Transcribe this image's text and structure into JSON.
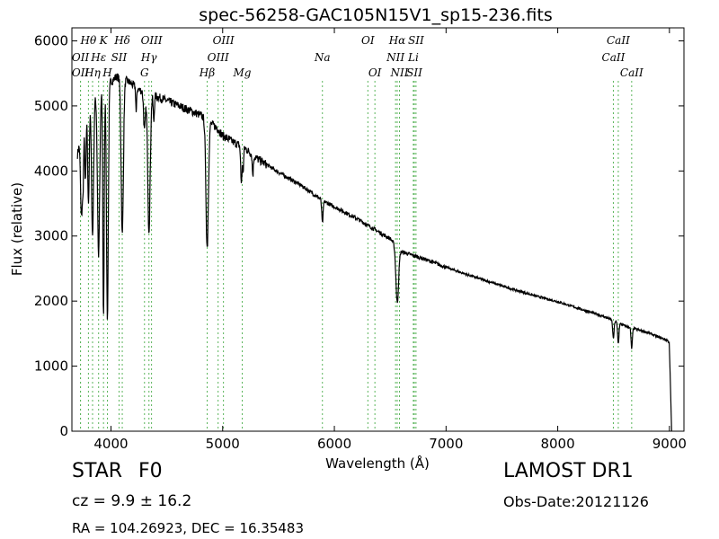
{
  "chart_data": {
    "type": "line",
    "title": "spec-56258-GAC105N15V1_sp15-236.fits",
    "xlabel": "Wavelength (Å)",
    "ylabel": "Flux (relative)",
    "xlim": [
      3650,
      9130
    ],
    "ylim": [
      0,
      6200
    ],
    "xticks": [
      4000,
      5000,
      6000,
      7000,
      8000,
      9000
    ],
    "yticks": [
      0,
      1000,
      2000,
      3000,
      4000,
      5000,
      6000
    ],
    "grid": false,
    "line_color": "#000000",
    "marker_color": "#5bb55b",
    "continuum": [
      [
        3700,
        4250
      ],
      [
        3760,
        4900
      ],
      [
        3850,
        5150
      ],
      [
        3950,
        5300
      ],
      [
        4050,
        5450
      ],
      [
        4150,
        5380
      ],
      [
        4250,
        5250
      ],
      [
        4400,
        5150
      ],
      [
        4500,
        5080
      ],
      [
        4650,
        4970
      ],
      [
        4800,
        4860
      ],
      [
        4950,
        4660
      ],
      [
        5000,
        4540
      ],
      [
        5100,
        4440
      ],
      [
        5200,
        4350
      ],
      [
        5300,
        4200
      ],
      [
        5500,
        3980
      ],
      [
        5700,
        3780
      ],
      [
        5900,
        3540
      ],
      [
        6000,
        3450
      ],
      [
        6200,
        3270
      ],
      [
        6400,
        3060
      ],
      [
        6500,
        2960
      ],
      [
        6600,
        2760
      ],
      [
        6800,
        2650
      ],
      [
        7000,
        2520
      ],
      [
        7200,
        2400
      ],
      [
        7400,
        2290
      ],
      [
        7600,
        2180
      ],
      [
        7800,
        2080
      ],
      [
        8000,
        1990
      ],
      [
        8200,
        1880
      ],
      [
        8400,
        1770
      ],
      [
        8500,
        1700
      ],
      [
        8600,
        1620
      ],
      [
        8800,
        1520
      ],
      [
        8900,
        1450
      ],
      [
        8980,
        1400
      ],
      [
        9000,
        1360
      ]
    ],
    "absorption": [
      {
        "center": 3735,
        "depth": 1300,
        "width": 8
      },
      {
        "center": 3750,
        "depth": 900,
        "width": 6
      },
      {
        "center": 3771,
        "depth": 1100,
        "width": 6
      },
      {
        "center": 3798,
        "depth": 1500,
        "width": 7
      },
      {
        "center": 3835,
        "depth": 2100,
        "width": 9
      },
      {
        "center": 3889,
        "depth": 2500,
        "width": 10
      },
      {
        "center": 3933,
        "depth": 3500,
        "width": 6
      },
      {
        "center": 3968,
        "depth": 3600,
        "width": 8
      },
      {
        "center": 4101,
        "depth": 2400,
        "width": 10
      },
      {
        "center": 4226,
        "depth": 400,
        "width": 4
      },
      {
        "center": 4300,
        "depth": 600,
        "width": 8
      },
      {
        "center": 4340,
        "depth": 2100,
        "width": 11
      },
      {
        "center": 4383,
        "depth": 400,
        "width": 5
      },
      {
        "center": 4861,
        "depth": 1950,
        "width": 11
      },
      {
        "center": 5167,
        "depth": 550,
        "width": 6
      },
      {
        "center": 5183,
        "depth": 350,
        "width": 5
      },
      {
        "center": 5270,
        "depth": 300,
        "width": 5
      },
      {
        "center": 5893,
        "depth": 350,
        "width": 6
      },
      {
        "center": 6563,
        "depth": 860,
        "width": 12
      },
      {
        "center": 8498,
        "depth": 280,
        "width": 6
      },
      {
        "center": 8542,
        "depth": 320,
        "width": 6
      },
      {
        "center": 8662,
        "depth": 320,
        "width": 6
      }
    ],
    "cutoff": {
      "start": 9000,
      "end": 9020,
      "to": 0
    },
    "line_markers": [
      {
        "name": "OII",
        "wavelength": 3727,
        "row": 1
      },
      {
        "name": "OII",
        "wavelength": 3727,
        "row": 2
      },
      {
        "name": "Hθ",
        "wavelength": 3798,
        "row": 0
      },
      {
        "name": "Hη",
        "wavelength": 3835,
        "row": 2
      },
      {
        "name": "Hε",
        "wavelength": 3889,
        "row": 1
      },
      {
        "name": "K",
        "wavelength": 3933,
        "row": 0
      },
      {
        "name": "H",
        "wavelength": 3968,
        "row": 2
      },
      {
        "name": "SII",
        "wavelength": 4072,
        "row": 1
      },
      {
        "name": "Hδ",
        "wavelength": 4101,
        "row": 0
      },
      {
        "name": "G",
        "wavelength": 4300,
        "row": 2
      },
      {
        "name": "Hγ",
        "wavelength": 4340,
        "row": 1
      },
      {
        "name": "OIII",
        "wavelength": 4363,
        "row": 0
      },
      {
        "name": "Hβ",
        "wavelength": 4861,
        "row": 2
      },
      {
        "name": "OIII",
        "wavelength": 4959,
        "row": 1
      },
      {
        "name": "OIII",
        "wavelength": 5007,
        "row": 0
      },
      {
        "name": "Mg",
        "wavelength": 5175,
        "row": 2
      },
      {
        "name": "Na",
        "wavelength": 5893,
        "row": 1
      },
      {
        "name": "OI",
        "wavelength": 6300,
        "row": 0
      },
      {
        "name": "OI",
        "wavelength": 6363,
        "row": 2
      },
      {
        "name": "NII",
        "wavelength": 6548,
        "row": 1
      },
      {
        "name": "Hα",
        "wavelength": 6563,
        "row": 0
      },
      {
        "name": "NII",
        "wavelength": 6583,
        "row": 2
      },
      {
        "name": "Li",
        "wavelength": 6707,
        "row": 1
      },
      {
        "name": "SII",
        "wavelength": 6716,
        "row": 2
      },
      {
        "name": "SII",
        "wavelength": 6731,
        "row": 0
      },
      {
        "name": "CaII",
        "wavelength": 8498,
        "row": 1
      },
      {
        "name": "CaII",
        "wavelength": 8542,
        "row": 0
      },
      {
        "name": "CaII",
        "wavelength": 8662,
        "row": 2
      }
    ]
  },
  "info": {
    "object_type": "STAR",
    "subclass": "F0",
    "redshift": "cz = 9.9 ± 16.2",
    "coordinates": "RA = 104.26923, DEC = 16.35483",
    "survey": "LAMOST DR1",
    "obs_date": "Obs-Date:20121126"
  }
}
